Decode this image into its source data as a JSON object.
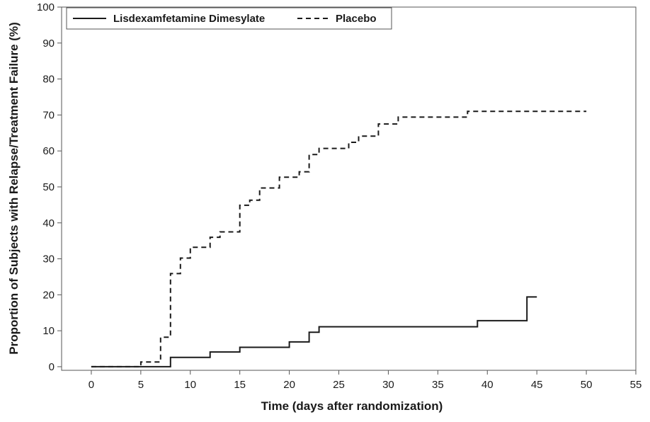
{
  "chart_data": {
    "type": "line",
    "title": "",
    "xlabel": "Time (days after randomization)",
    "ylabel": "Proportion of Subjects with Relapse/Treatment Failure (%)",
    "xlim": [
      -3,
      55
    ],
    "ylim": [
      -1,
      100
    ],
    "xticks": [
      0,
      5,
      10,
      15,
      20,
      25,
      30,
      35,
      40,
      45,
      50,
      55
    ],
    "yticks": [
      0,
      10,
      20,
      30,
      40,
      50,
      60,
      70,
      80,
      90,
      100
    ],
    "step": true,
    "legend_position": "top-left",
    "series": [
      {
        "name": "Lisdexamfetamine Dimesylate",
        "style": "solid",
        "color": "#1a1a1a",
        "points": [
          [
            0,
            0
          ],
          [
            8,
            0
          ],
          [
            8,
            2.6
          ],
          [
            12,
            2.6
          ],
          [
            12,
            4.1
          ],
          [
            15,
            4.1
          ],
          [
            15,
            5.4
          ],
          [
            20,
            5.4
          ],
          [
            20,
            6.9
          ],
          [
            22,
            6.9
          ],
          [
            22,
            9.6
          ],
          [
            23,
            9.6
          ],
          [
            23,
            11.1
          ],
          [
            39,
            11.1
          ],
          [
            39,
            12.8
          ],
          [
            44,
            12.8
          ],
          [
            44,
            19.4
          ],
          [
            45,
            19.4
          ]
        ]
      },
      {
        "name": "Placebo",
        "style": "dashed",
        "color": "#1a1a1a",
        "points": [
          [
            0,
            0
          ],
          [
            5,
            0
          ],
          [
            5,
            1.3
          ],
          [
            7,
            1.3
          ],
          [
            7,
            8.2
          ],
          [
            8,
            8.2
          ],
          [
            8,
            25.9
          ],
          [
            9,
            25.9
          ],
          [
            9,
            30.2
          ],
          [
            10,
            30.2
          ],
          [
            10,
            33.2
          ],
          [
            12,
            33.2
          ],
          [
            12,
            36.0
          ],
          [
            13,
            36.0
          ],
          [
            13,
            37.5
          ],
          [
            15,
            37.5
          ],
          [
            15,
            44.9
          ],
          [
            16,
            44.9
          ],
          [
            16,
            46.3
          ],
          [
            17,
            46.3
          ],
          [
            17,
            49.7
          ],
          [
            19,
            49.7
          ],
          [
            19,
            52.7
          ],
          [
            21,
            52.7
          ],
          [
            21,
            54.2
          ],
          [
            22,
            54.2
          ],
          [
            22,
            59.0
          ],
          [
            23,
            59.0
          ],
          [
            23,
            60.7
          ],
          [
            26,
            60.7
          ],
          [
            26,
            62.4
          ],
          [
            27,
            62.4
          ],
          [
            27,
            64.1
          ],
          [
            29,
            64.1
          ],
          [
            29,
            67.5
          ],
          [
            31,
            67.5
          ],
          [
            31,
            69.4
          ],
          [
            38,
            69.4
          ],
          [
            38,
            71.0
          ],
          [
            50,
            71.0
          ]
        ]
      }
    ]
  }
}
